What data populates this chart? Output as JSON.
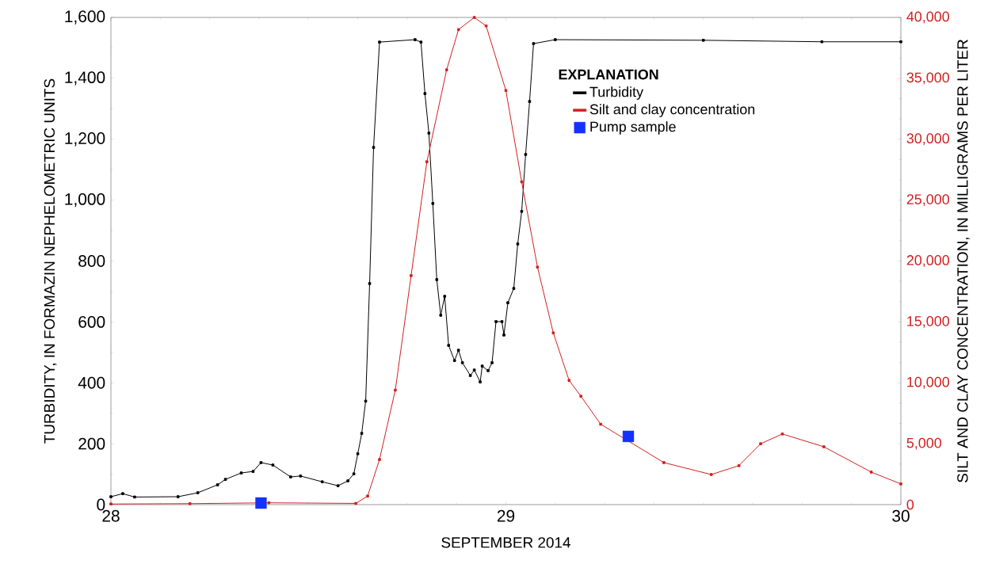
{
  "chart_data": {
    "type": "line",
    "xlabel": "SEPTEMBER 2014",
    "ylabel": "TURBIDITY, IN FORMAZIN NEPHELOMETRIC UNITS",
    "y2label": "SILT AND CLAY CONCENTRATION, IN MILLIGRAMS PER LITER",
    "legend_title": "EXPLANATION",
    "legend": "top right",
    "xlim": [
      28,
      30
    ],
    "xticks": [
      28,
      29,
      30
    ],
    "ylim": [
      0,
      1600
    ],
    "yticks": [
      0,
      200,
      400,
      600,
      800,
      {
        "value": 1000,
        "label": "1,000"
      },
      {
        "value": 1200,
        "label": "1,200"
      },
      {
        "value": 1400,
        "label": "1,400"
      },
      {
        "value": 1600,
        "label": "1,600"
      }
    ],
    "y2lim": [
      0,
      40000
    ],
    "y2ticks": [
      0,
      {
        "value": 5000,
        "label": "5,000"
      },
      {
        "value": 10000,
        "label": "10,000"
      },
      {
        "value": 15000,
        "label": "15,000"
      },
      {
        "value": 20000,
        "label": "20,000"
      },
      {
        "value": 25000,
        "label": "25,000"
      },
      {
        "value": 30000,
        "label": "30,000"
      },
      {
        "value": 35000,
        "label": "35,000"
      },
      {
        "value": 40000,
        "label": "40,000"
      }
    ],
    "series": [
      {
        "name": "Turbidity",
        "color": "#000000",
        "marker": "square",
        "x": [
          28.0,
          28.03,
          28.06,
          28.17,
          28.22,
          28.27,
          28.29,
          28.33,
          28.36,
          28.38,
          28.41,
          28.455,
          28.48,
          28.535,
          28.575,
          28.6,
          28.615,
          28.625,
          28.635,
          28.645,
          28.655,
          28.665,
          28.68,
          28.77,
          28.785,
          28.795,
          28.805,
          28.815,
          28.825,
          28.835,
          28.845,
          28.855,
          28.87,
          28.88,
          28.89,
          28.91,
          28.92,
          28.935,
          28.94,
          28.955,
          28.965,
          28.975,
          28.99,
          28.995,
          29.005,
          29.02,
          29.03,
          29.04,
          29.05,
          29.06,
          29.07,
          29.125,
          29.5,
          29.8,
          30.0
        ],
        "values": [
          26,
          36,
          25,
          26,
          39,
          65,
          83,
          104,
          109,
          138,
          130,
          91,
          94,
          75,
          62,
          78,
          101,
          167,
          234,
          340,
          726,
          1173,
          1519,
          1527,
          1519,
          1350,
          1220,
          989,
          739,
          622,
          684,
          523,
          473,
          507,
          466,
          424,
          442,
          403,
          455,
          440,
          466,
          601,
          601,
          557,
          663,
          710,
          856,
          963,
          1150,
          1324,
          1514,
          1527,
          1525,
          1520,
          1520
        ]
      },
      {
        "name": "Silt and clay concentration",
        "axis": "y2",
        "color": "#d11f1f",
        "marker": "square",
        "x": [
          28.0,
          28.2,
          28.4,
          28.62,
          28.65,
          28.68,
          28.72,
          28.76,
          28.8,
          28.85,
          28.88,
          28.92,
          28.95,
          29.0,
          29.04,
          29.08,
          29.12,
          29.16,
          29.19,
          29.24,
          29.31,
          29.4,
          29.52,
          29.59,
          29.645,
          29.7,
          29.805,
          29.925,
          30.0
        ],
        "values": [
          50,
          80,
          150,
          100,
          700,
          3700,
          9400,
          18800,
          28150,
          35700,
          39000,
          40000,
          39300,
          34000,
          26500,
          19500,
          14100,
          10200,
          8900,
          6600,
          null,
          3450,
          2470,
          3200,
          5000,
          5800,
          4750,
          2670,
          1700
        ]
      },
      {
        "name": "Pump sample",
        "type": "scatter",
        "axis": "y2",
        "color": "#1432ff",
        "marker": "square",
        "x": [
          28.38,
          29.31
        ],
        "values": [
          130,
          5600
        ]
      }
    ]
  }
}
